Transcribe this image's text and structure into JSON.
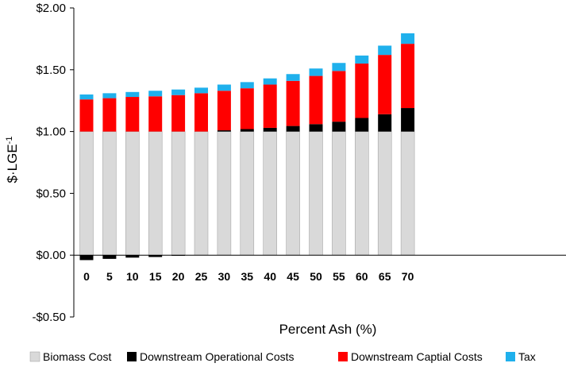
{
  "chart_data": {
    "type": "bar",
    "stacked": true,
    "title": "",
    "xlabel": "Percent Ash (%)",
    "ylabel_main": "$·LGE",
    "ylabel_sup": "-1",
    "ylim": [
      -0.5,
      2.0
    ],
    "yticks": [
      -0.5,
      0,
      0.5,
      1.0,
      1.5,
      2.0
    ],
    "ytick_labels": [
      "-$0.50",
      "$0.00",
      "$0.50",
      "$1.00",
      "$1.50",
      "$2.00"
    ],
    "categories": [
      "0",
      "5",
      "10",
      "15",
      "20",
      "25",
      "30",
      "35",
      "40",
      "45",
      "50",
      "55",
      "60",
      "65",
      "70"
    ],
    "legend_position": "bottom",
    "series": [
      {
        "name": "Biomass Cost",
        "color": "#d9d9d9",
        "values": [
          1.0,
          1.0,
          1.0,
          1.0,
          1.0,
          1.0,
          1.0,
          1.0,
          1.0,
          1.0,
          1.0,
          1.0,
          1.0,
          1.0,
          1.0
        ]
      },
      {
        "name": "Downstream Operational Costs",
        "color": "#000000",
        "values": [
          -0.04,
          -0.03,
          -0.02,
          -0.015,
          -0.005,
          0.0,
          0.01,
          0.02,
          0.03,
          0.045,
          0.06,
          0.08,
          0.11,
          0.14,
          0.19
        ]
      },
      {
        "name": "Downstream Captial Costs",
        "color": "#ff0000",
        "values": [
          0.26,
          0.27,
          0.28,
          0.285,
          0.295,
          0.31,
          0.32,
          0.33,
          0.35,
          0.365,
          0.39,
          0.41,
          0.44,
          0.48,
          0.52
        ]
      },
      {
        "name": "Tax",
        "color": "#1fb0ec",
        "values": [
          0.04,
          0.04,
          0.04,
          0.045,
          0.045,
          0.045,
          0.05,
          0.05,
          0.05,
          0.055,
          0.06,
          0.065,
          0.065,
          0.075,
          0.085
        ]
      }
    ]
  }
}
